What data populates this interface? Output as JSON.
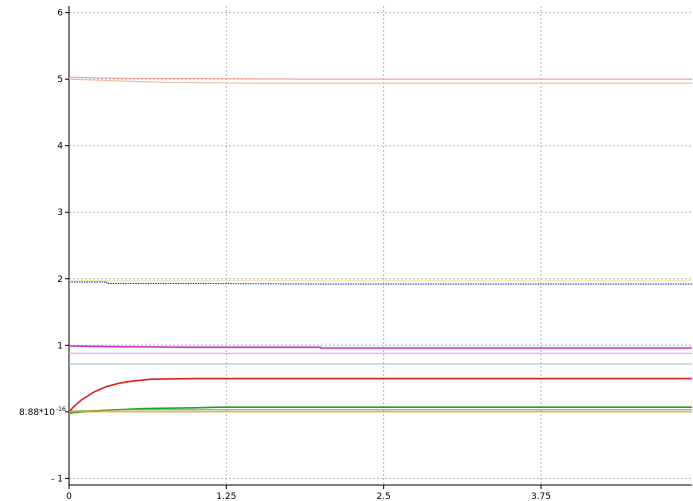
{
  "chart_data": {
    "type": "line",
    "title": "",
    "xlabel": "",
    "ylabel": "",
    "xlim": [
      0,
      4.95
    ],
    "ylim": [
      -1.1,
      6.1
    ],
    "grid": true,
    "x_ticks": [
      {
        "value": 0,
        "label": "0"
      },
      {
        "value": 1.25,
        "label": "1.25"
      },
      {
        "value": 2.5,
        "label": "2.5"
      },
      {
        "value": 3.75,
        "label": "3.75"
      }
    ],
    "y_ticks": [
      {
        "value": -1,
        "label": "- 1"
      },
      {
        "value": 0,
        "label": "8.88*10",
        "sup": "-16"
      },
      {
        "value": 1,
        "label": "1"
      },
      {
        "value": 2,
        "label": "2"
      },
      {
        "value": 3,
        "label": "3"
      },
      {
        "value": 4,
        "label": "4"
      },
      {
        "value": 5,
        "label": "5"
      },
      {
        "value": 6,
        "label": "6"
      }
    ],
    "series": [
      {
        "color": "#f4a0a0",
        "style": "solid",
        "x": [
          0,
          0.5,
          1.0,
          2.0,
          3.0,
          4.95
        ],
        "y": [
          5.03,
          5.01,
          5.01,
          5.0,
          5.0,
          5.0
        ]
      },
      {
        "color": "#f0b898",
        "style": "solid",
        "x": [
          0,
          0.3,
          0.8,
          1.5,
          2.5,
          4.95
        ],
        "y": [
          5.0,
          4.98,
          4.95,
          4.94,
          4.94,
          4.94
        ]
      },
      {
        "color": "#3030c8",
        "style": "dotted",
        "x": [
          0,
          0.3,
          0.3,
          1.0,
          2.0,
          4.95
        ],
        "y": [
          1.95,
          1.95,
          1.93,
          1.93,
          1.92,
          1.92
        ]
      },
      {
        "color": "#f0e0a0",
        "style": "solid",
        "x": [
          0,
          4.95
        ],
        "y": [
          1.97,
          1.97
        ]
      },
      {
        "color": "#cc30cc",
        "style": "solid",
        "x": [
          0,
          0.3,
          1.0,
          2.0,
          2.0,
          4.95
        ],
        "y": [
          0.99,
          0.98,
          0.97,
          0.97,
          0.96,
          0.96
        ]
      },
      {
        "color": "#e6a0e6",
        "style": "solid",
        "x": [
          0,
          4.95
        ],
        "y": [
          0.88,
          0.88
        ]
      },
      {
        "color": "#90c8e8",
        "style": "solid",
        "x": [
          0,
          4.95
        ],
        "y": [
          0.72,
          0.72
        ]
      },
      {
        "color": "#e02020",
        "style": "solid",
        "x": [
          0,
          0.05,
          0.1,
          0.2,
          0.3,
          0.4,
          0.5,
          0.65,
          1.0,
          2.0,
          4.95
        ],
        "y": [
          0.0,
          0.1,
          0.18,
          0.3,
          0.38,
          0.43,
          0.46,
          0.49,
          0.5,
          0.5,
          0.5
        ]
      },
      {
        "color": "#20a020",
        "style": "solid",
        "x": [
          0,
          0.25,
          0.6,
          1.0,
          1.2,
          2.0,
          4.95
        ],
        "y": [
          -0.02,
          0.02,
          0.05,
          0.06,
          0.07,
          0.07,
          0.07
        ]
      },
      {
        "color": "#9a9a30",
        "style": "solid",
        "x": [
          0,
          0.5,
          1.0,
          4.95
        ],
        "y": [
          0.01,
          0.03,
          0.03,
          0.03
        ]
      },
      {
        "color": "#e8a040",
        "style": "solid",
        "x": [
          0,
          0.3,
          1.0,
          4.95
        ],
        "y": [
          0.0,
          0.0,
          0.0,
          0.0
        ]
      }
    ]
  }
}
